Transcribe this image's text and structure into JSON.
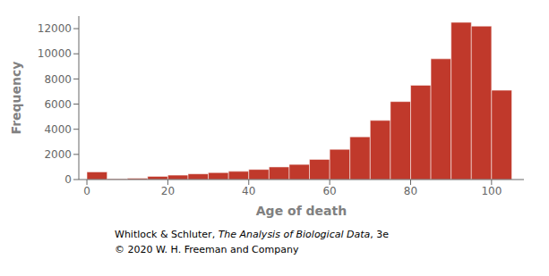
{
  "chart_data": {
    "type": "histogram",
    "xlabel": "Age of death",
    "ylabel": "Frequency",
    "bins": [
      0,
      5,
      10,
      15,
      20,
      25,
      30,
      35,
      40,
      45,
      50,
      55,
      60,
      65,
      70,
      75,
      80,
      85,
      90,
      95,
      100,
      105
    ],
    "values": [
      600,
      50,
      100,
      250,
      350,
      450,
      550,
      650,
      800,
      1000,
      1200,
      1600,
      2400,
      3400,
      4700,
      6200,
      7500,
      9600,
      12500,
      12200,
      7100
    ],
    "color": "#c0392b",
    "xlim": [
      -2,
      108
    ],
    "ylim": [
      0,
      13000
    ],
    "xticks": [
      0,
      20,
      40,
      60,
      80,
      100
    ],
    "yticks": [
      0,
      2000,
      4000,
      6000,
      8000,
      10000,
      12000
    ],
    "grid": false,
    "annotations": [
      [
        "Whitlock & Schluter, ",
        "The Analysis of Biological Data",
        ", 3e"
      ],
      [
        "© 2020 W. H. Freeman and Company"
      ]
    ]
  }
}
